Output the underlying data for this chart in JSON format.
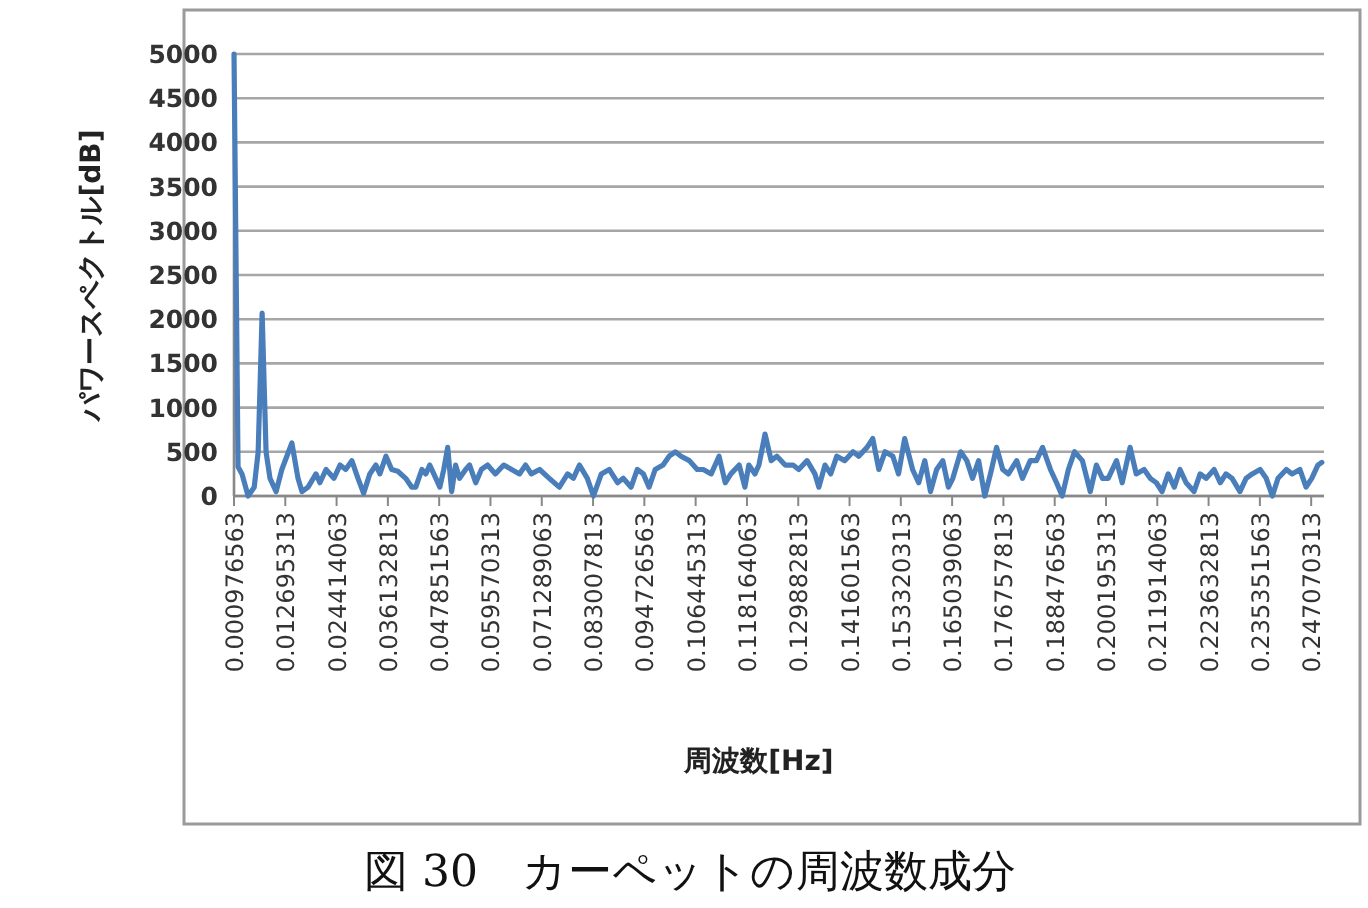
{
  "chart_data": {
    "type": "line",
    "xlabel": "周波数[Hz]",
    "ylabel": "パワースペクトル[dB]",
    "annotations": [
      "図 30　カーペットの周波数成分"
    ],
    "x": [
      0.00098,
      0.0019,
      0.0028,
      0.0042,
      0.0056,
      0.0065,
      0.0074,
      0.0083,
      0.0092,
      0.0106,
      0.0119,
      0.0142,
      0.0156,
      0.0165,
      0.0179,
      0.0197,
      0.0206,
      0.022,
      0.0238,
      0.0252,
      0.0265,
      0.0279,
      0.0293,
      0.0306,
      0.032,
      0.0334,
      0.0343,
      0.0357,
      0.037,
      0.0384,
      0.0402,
      0.0416,
      0.0425,
      0.0439,
      0.0448,
      0.0457,
      0.0471,
      0.048,
      0.0489,
      0.0498,
      0.0507,
      0.0516,
      0.0525,
      0.0539,
      0.0548,
      0.0562,
      0.0575,
      0.0589,
      0.0607,
      0.0626,
      0.0644,
      0.0662,
      0.0676,
      0.0689,
      0.0708,
      0.073,
      0.0753,
      0.0772,
      0.0785,
      0.0799,
      0.0817,
      0.0831,
      0.0849,
      0.0867,
      0.0886,
      0.0899,
      0.0917,
      0.0931,
      0.0945,
      0.0958,
      0.0972,
      0.099,
      0.1004,
      0.1018,
      0.1031,
      0.105,
      0.1068,
      0.1082,
      0.11,
      0.1118,
      0.1132,
      0.1145,
      0.1164,
      0.1177,
      0.1186,
      0.12,
      0.1209,
      0.1223,
      0.1237,
      0.125,
      0.1269,
      0.1287,
      0.13,
      0.1319,
      0.1337,
      0.1346,
      0.136,
      0.1373,
      0.1387,
      0.1405,
      0.1424,
      0.1437,
      0.1456,
      0.1469,
      0.1483,
      0.1497,
      0.1515,
      0.1528,
      0.1542,
      0.156,
      0.1574,
      0.1588,
      0.1601,
      0.1615,
      0.1629,
      0.1642,
      0.1652,
      0.167,
      0.1684,
      0.1697,
      0.1711,
      0.1725,
      0.1738,
      0.1752,
      0.1766,
      0.1779,
      0.1798,
      0.1811,
      0.1829,
      0.1843,
      0.1857,
      0.1875,
      0.1889,
      0.1902,
      0.1916,
      0.193,
      0.1948,
      0.1966,
      0.198,
      0.1994,
      0.2007,
      0.2026,
      0.2039,
      0.2057,
      0.2071,
      0.2089,
      0.2103,
      0.2117,
      0.213,
      0.2144,
      0.2158,
      0.2171,
      0.2185,
      0.2203,
      0.2217,
      0.2231,
      0.2249,
      0.2263,
      0.2276,
      0.229,
      0.2308,
      0.2322,
      0.2336,
      0.2354,
      0.2368,
      0.2382,
      0.2395,
      0.2414,
      0.2427,
      0.2445,
      0.2459,
      0.2472,
      0.2486,
      0.2495
    ],
    "series": [
      {
        "color": "#4a7ebb",
        "values": [
          5000,
          330,
          250,
          0,
          100,
          500,
          2070,
          500,
          200,
          50,
          300,
          600,
          200,
          50,
          100,
          250,
          150,
          300,
          200,
          350,
          300,
          400,
          200,
          30,
          250,
          350,
          250,
          450,
          300,
          280,
          200,
          100,
          100,
          300,
          250,
          350,
          200,
          100,
          300,
          550,
          50,
          350,
          200,
          300,
          350,
          150,
          300,
          350,
          250,
          350,
          300,
          250,
          350,
          250,
          300,
          200,
          100,
          250,
          200,
          350,
          200,
          0,
          250,
          300,
          150,
          200,
          100,
          300,
          250,
          100,
          300,
          350,
          450,
          500,
          450,
          400,
          300,
          300,
          250,
          450,
          150,
          250,
          350,
          100,
          350,
          250,
          350,
          700,
          400,
          450,
          350,
          350,
          300,
          400,
          250,
          100,
          350,
          250,
          450,
          400,
          500,
          450,
          550,
          650,
          300,
          500,
          450,
          250,
          650,
          300,
          150,
          400,
          50,
          300,
          400,
          100,
          200,
          500,
          400,
          200,
          400,
          0,
          250,
          550,
          300,
          250,
          400,
          200,
          400,
          400,
          550,
          300,
          150,
          0,
          300,
          500,
          400,
          50,
          350,
          200,
          200,
          400,
          150,
          550,
          250,
          300,
          200,
          150,
          50,
          250,
          100,
          300,
          150,
          50,
          250,
          200,
          300,
          150,
          250,
          200,
          50,
          200,
          250,
          300,
          200,
          0,
          200,
          300,
          250,
          300,
          100,
          200,
          350,
          380
        ]
      }
    ],
    "xlim": [
      0.0009765625,
      0.25
    ],
    "xticks": [
      {
        "value": 0.0009765625,
        "label": "0.000976563"
      },
      {
        "value": 0.0126953125,
        "label": "0.012695313"
      },
      {
        "value": 0.0244140625,
        "label": "0.024414063"
      },
      {
        "value": 0.0361328125,
        "label": "0.036132813"
      },
      {
        "value": 0.0478515625,
        "label": "0.047851563"
      },
      {
        "value": 0.0595703125,
        "label": "0.059570313"
      },
      {
        "value": 0.0712890625,
        "label": "0.071289063"
      },
      {
        "value": 0.0830078125,
        "label": "0.083007813"
      },
      {
        "value": 0.0947265625,
        "label": "0.094726563"
      },
      {
        "value": 0.1064453125,
        "label": "0.106445313"
      },
      {
        "value": 0.1181640625,
        "label": "0.118164063"
      },
      {
        "value": 0.1298828125,
        "label": "0.129882813"
      },
      {
        "value": 0.1416015625,
        "label": "0.141601563"
      },
      {
        "value": 0.1533203125,
        "label": "0.153320313"
      },
      {
        "value": 0.1650390625,
        "label": "0.165039063"
      },
      {
        "value": 0.1767578125,
        "label": "0.176757813"
      },
      {
        "value": 0.1884765625,
        "label": "0.188476563"
      },
      {
        "value": 0.2001953125,
        "label": "0.200195313"
      },
      {
        "value": 0.2119140625,
        "label": "0.211914063"
      },
      {
        "value": 0.2236328125,
        "label": "0.223632813"
      },
      {
        "value": 0.2353515625,
        "label": "0.235351563"
      },
      {
        "value": 0.2470703125,
        "label": "0.247070313"
      }
    ],
    "ylim": [
      0,
      5000
    ],
    "yticks": [
      0,
      500,
      1000,
      1500,
      2000,
      2500,
      3000,
      3500,
      4000,
      4500,
      5000
    ],
    "grid": "y",
    "marker": "none",
    "line_style": "solid"
  }
}
